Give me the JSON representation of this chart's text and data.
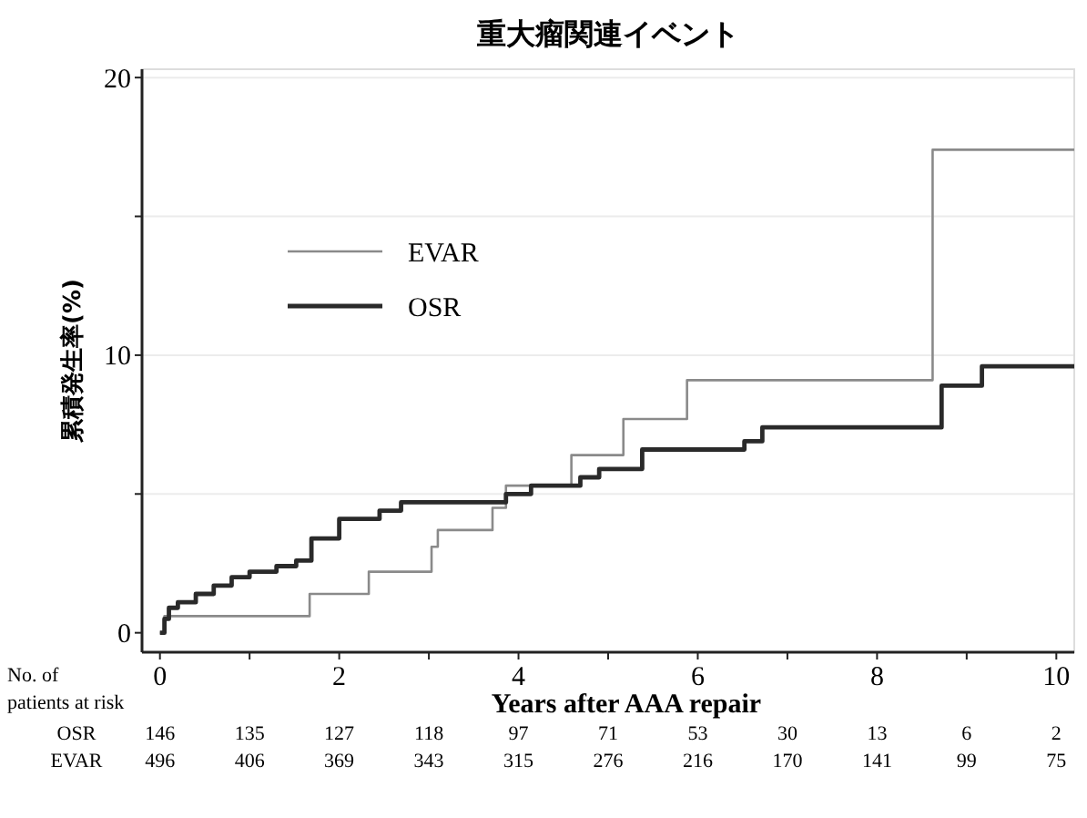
{
  "chart_data": {
    "type": "step",
    "title": "重大瘤関連イベント",
    "xlabel": "Years after AAA repair",
    "ylabel": "累積発生率(%)",
    "xlim": [
      -0.2,
      10.2
    ],
    "ylim": [
      -0.7,
      20.3
    ],
    "xticks": [
      0,
      {
        "value": 1,
        "label": null
      },
      2,
      {
        "value": 3,
        "label": null
      },
      4,
      {
        "value": 5,
        "label": null
      },
      6,
      {
        "value": 7,
        "label": null
      },
      8,
      {
        "value": 9,
        "label": null
      },
      10
    ],
    "yticks": [
      0,
      {
        "value": 5,
        "label": null
      },
      10,
      {
        "value": 15,
        "label": null
      },
      20
    ],
    "grid": "y",
    "legend": "top left",
    "series": [
      {
        "name": "EVAR",
        "color": "#8a8a8a",
        "x": [
          0,
          0.05,
          1.67,
          2.33,
          3.03,
          3.1,
          3.71,
          3.86,
          4.59,
          5.17,
          5.88,
          8.62,
          10.2
        ],
        "values": [
          0,
          0.6,
          1.4,
          2.2,
          3.1,
          3.7,
          4.5,
          5.3,
          6.4,
          7.7,
          9.1,
          17.4,
          17.4
        ]
      },
      {
        "name": "OSR",
        "color": "#2a2a2a",
        "x": [
          0,
          0.05,
          0.1,
          0.2,
          0.4,
          0.6,
          0.8,
          1.0,
          1.3,
          1.52,
          1.69,
          2.0,
          2.45,
          2.69,
          3.86,
          4.14,
          4.69,
          4.9,
          5.38,
          6.52,
          6.72,
          8.72,
          9.17,
          10.2
        ],
        "values": [
          0,
          0.5,
          0.9,
          1.1,
          1.4,
          1.7,
          2.0,
          2.2,
          2.4,
          2.6,
          3.4,
          4.1,
          4.4,
          4.7,
          5.0,
          5.3,
          5.6,
          5.9,
          6.6,
          6.9,
          7.4,
          8.9,
          9.6,
          9.6
        ]
      }
    ],
    "annotations": [
      "No. of",
      "patients at risk",
      "OSR",
      "146",
      "135",
      "127",
      "118",
      "97",
      "71",
      "53",
      "30",
      "13",
      "6",
      "2",
      "EVAR",
      "496",
      "406",
      "369",
      "343",
      "315",
      "276",
      "216",
      "170",
      "141",
      "99",
      "75"
    ]
  }
}
